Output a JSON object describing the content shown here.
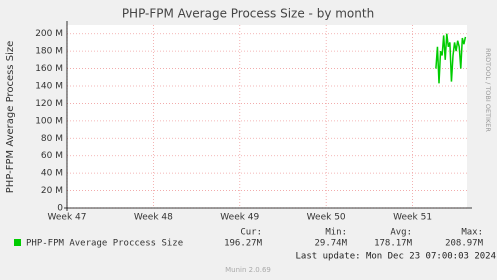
{
  "chart_data": {
    "type": "line",
    "title": "PHP-FPM Average Process Size - by month",
    "y_label": "PHP-FPM Average Process Size",
    "xlim": [
      47,
      51.63
    ],
    "xticks": [
      {
        "value": 47,
        "label": "Week 47"
      },
      {
        "value": 48,
        "label": "Week 48"
      },
      {
        "value": 49,
        "label": "Week 49"
      },
      {
        "value": 50,
        "label": "Week 50"
      },
      {
        "value": 51,
        "label": "Week 51"
      }
    ],
    "ylim": [
      0,
      210
    ],
    "yticks": [
      0,
      {
        "value": 20,
        "label": "20 M"
      },
      {
        "value": 40,
        "label": "40 M"
      },
      {
        "value": 60,
        "label": "60 M"
      },
      {
        "value": 80,
        "label": "80 M"
      },
      {
        "value": 100,
        "label": "100 M"
      },
      {
        "value": 120,
        "label": "120 M"
      },
      {
        "value": 140,
        "label": "140 M"
      },
      {
        "value": 160,
        "label": "160 M"
      },
      {
        "value": 180,
        "label": "180 M"
      },
      {
        "value": 200,
        "label": "200 M"
      }
    ],
    "grid": true,
    "x": [
      51.27,
      51.288,
      51.306,
      51.324,
      51.342,
      51.36,
      51.378,
      51.396,
      51.414,
      51.432,
      51.45,
      51.468,
      51.486,
      51.504,
      51.522,
      51.54,
      51.558,
      51.576,
      51.594,
      51.612
    ],
    "series": [
      {
        "name": "PHP-FPM Average Proccess Size",
        "color": "#00cc00",
        "values": [
          160,
          185,
          143,
          180,
          175,
          198,
          170,
          200,
          185,
          190,
          145,
          175,
          190,
          180,
          192,
          185,
          160,
          195,
          188,
          196.27
        ]
      }
    ],
    "summary": {
      "headers": [
        "Cur:",
        "Min:",
        "Avg:",
        "Max:"
      ],
      "values": [
        "196.27M",
        "29.74M",
        "178.17M",
        "208.97M"
      ]
    },
    "last_update": "Last update: Mon Dec 23 07:00:03 2024",
    "footer": "Munin 2.0.69",
    "watermark": "RRDTOOL / TOBI OETIKER"
  }
}
